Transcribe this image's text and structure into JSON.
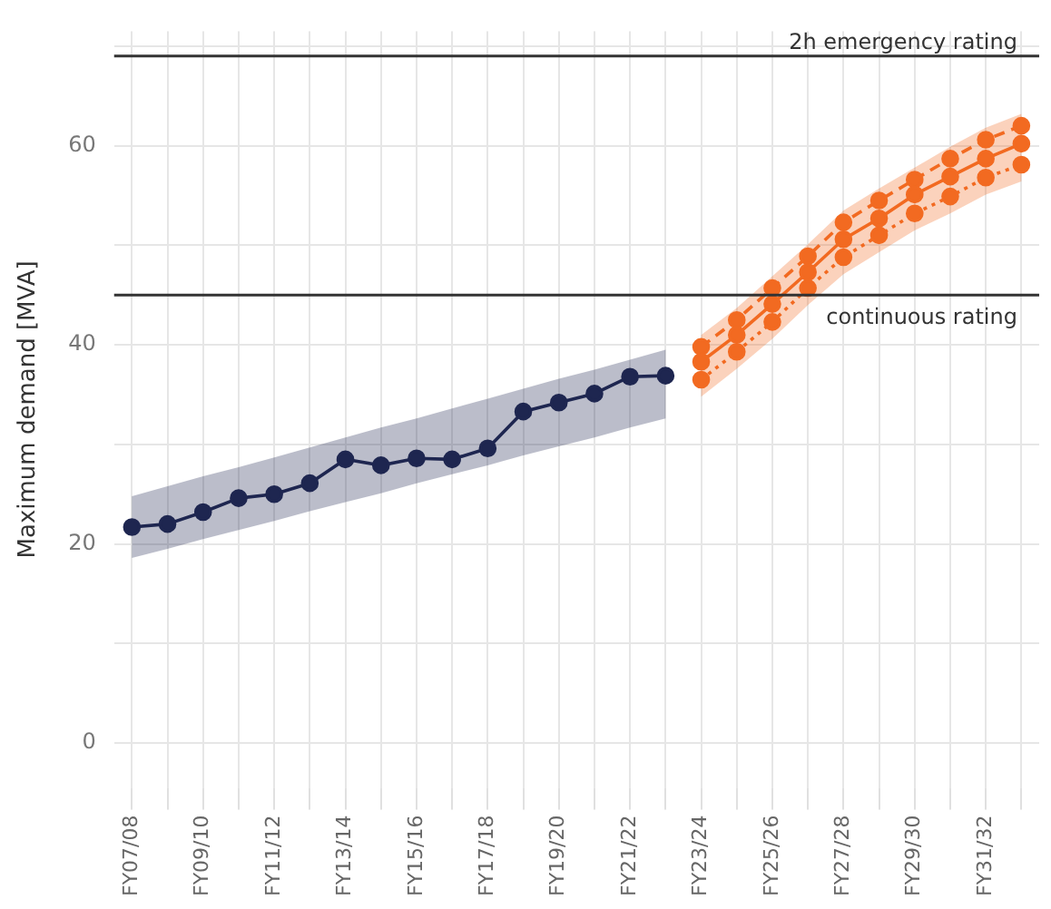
{
  "chart_data": {
    "type": "line",
    "ylabel": "Maximum demand [MVA]",
    "categories": [
      "FY07/08",
      null,
      "FY09/10",
      null,
      "FY11/12",
      null,
      "FY13/14",
      null,
      "FY15/16",
      null,
      "FY17/18",
      null,
      "FY19/20",
      null,
      "FY21/22",
      null,
      "FY23/24",
      null,
      "FY25/26",
      null,
      "FY27/28",
      null,
      "FY29/30",
      null,
      "FY31/32",
      null
    ],
    "series": [
      {
        "color": "#1e2650",
        "values": [
          21.7,
          22.0,
          23.2,
          24.6,
          25.0,
          26.1,
          28.5,
          27.9,
          28.6,
          28.5,
          29.6,
          33.3,
          34.2,
          35.1,
          36.8,
          36.9,
          null,
          null,
          null,
          null,
          null,
          null,
          null,
          null,
          null,
          null
        ],
        "lower": [
          18.6,
          19.5,
          20.5,
          21.4,
          22.3,
          23.3,
          24.2,
          25.1,
          26.1,
          27.0,
          27.9,
          28.9,
          29.8,
          30.7,
          31.7,
          32.6,
          null,
          null,
          null,
          null,
          null,
          null,
          null,
          null,
          null,
          null
        ],
        "upper": [
          24.8,
          25.8,
          26.8,
          27.7,
          28.7,
          29.7,
          30.7,
          31.7,
          32.6,
          33.6,
          34.6,
          35.6,
          36.6,
          37.5,
          38.5,
          39.5,
          null,
          null,
          null,
          null,
          null,
          null,
          null,
          null,
          null,
          null
        ]
      },
      {
        "color": "#f26a21",
        "values": [
          null,
          null,
          null,
          null,
          null,
          null,
          null,
          null,
          null,
          null,
          null,
          null,
          null,
          null,
          null,
          null,
          38.3,
          41.0,
          44.1,
          47.3,
          50.6,
          52.7,
          55.1,
          56.9,
          58.7,
          60.2
        ],
        "lower": [
          null,
          null,
          null,
          null,
          null,
          null,
          null,
          null,
          null,
          null,
          null,
          null,
          null,
          null,
          null,
          null,
          34.8,
          37.6,
          40.6,
          44.0,
          47.1,
          49.3,
          51.5,
          53.2,
          55.1,
          56.4
        ],
        "upper": [
          null,
          null,
          null,
          null,
          null,
          null,
          null,
          null,
          null,
          null,
          null,
          null,
          null,
          null,
          null,
          null,
          41.0,
          43.7,
          46.9,
          50.1,
          53.5,
          55.7,
          57.8,
          59.9,
          61.8,
          63.2
        ]
      },
      {
        "color": "#f26a21",
        "line_style": "dashed",
        "values": [
          null,
          null,
          null,
          null,
          null,
          null,
          null,
          null,
          null,
          null,
          null,
          null,
          null,
          null,
          null,
          null,
          39.8,
          42.5,
          45.7,
          48.9,
          52.3,
          54.5,
          56.6,
          58.7,
          60.6,
          62.0
        ]
      },
      {
        "color": "#f26a21",
        "line_style": "dotted",
        "values": [
          null,
          null,
          null,
          null,
          null,
          null,
          null,
          null,
          null,
          null,
          null,
          null,
          null,
          null,
          null,
          null,
          36.5,
          39.3,
          42.3,
          45.7,
          48.8,
          51.0,
          53.2,
          54.9,
          56.8,
          58.1
        ]
      }
    ],
    "ylim": [
      -4.5,
      71.5
    ],
    "yticks": [
      0,
      {
        "value": 10,
        "label": null
      },
      20,
      {
        "value": 30,
        "label": null
      },
      40,
      {
        "value": 50,
        "label": null
      },
      60,
      {
        "value": 70,
        "label": null
      }
    ],
    "ref_lines": [
      {
        "axis": "y",
        "value": 69,
        "label": "2h emergency rating",
        "color": "#333333"
      },
      {
        "axis": "y",
        "value": 45,
        "label": "continuous rating",
        "color": "#333333"
      }
    ],
    "grid": true,
    "legend": false,
    "marker": "circle",
    "line_style": "solid"
  }
}
